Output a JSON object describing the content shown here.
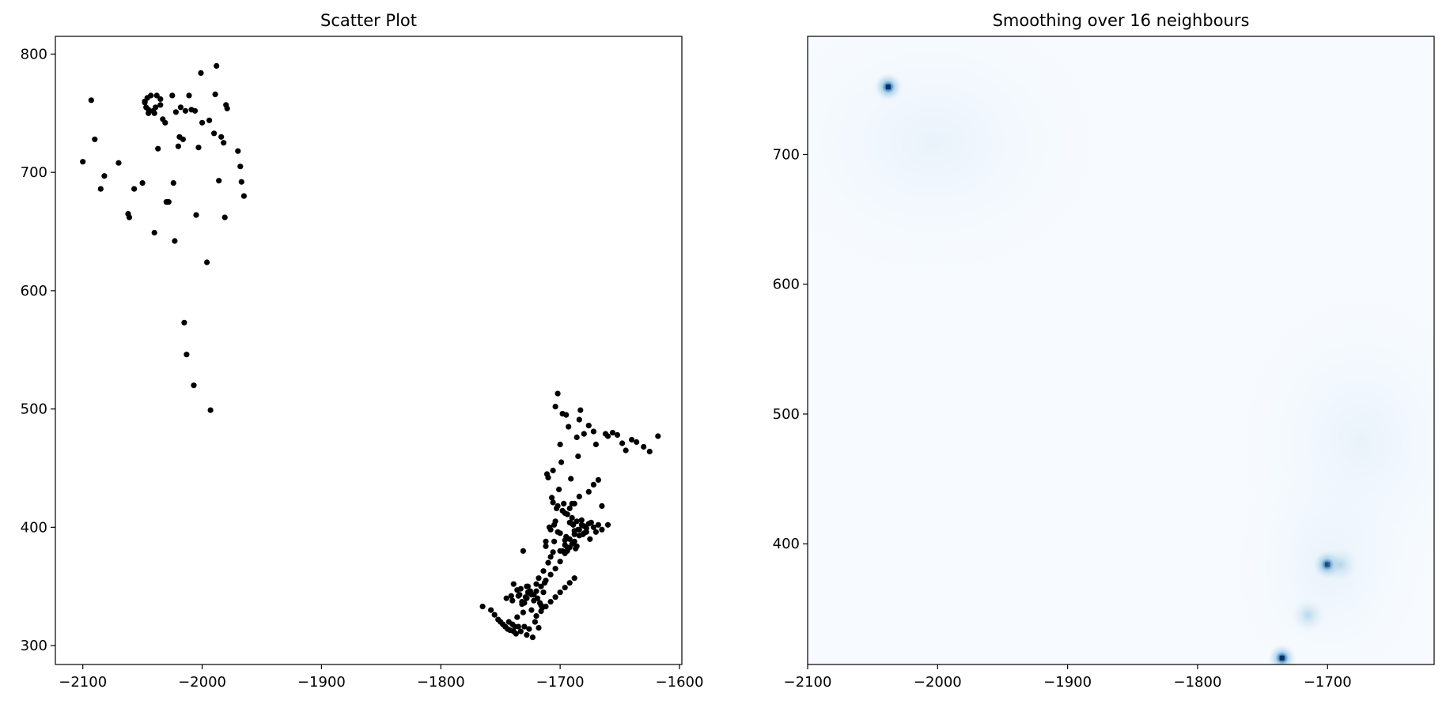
{
  "chart_data": [
    {
      "type": "scatter",
      "title": "Scatter Plot",
      "xlabel": "",
      "ylabel": "",
      "xlim": [
        -2123,
        -1598
      ],
      "ylim": [
        284,
        815
      ],
      "xticks": [
        -2100,
        -2000,
        -1900,
        -1800,
        -1700,
        -1600
      ],
      "xtick_labels": [
        "−2100",
        "−2000",
        "−1900",
        "−1800",
        "−1700",
        "−1600"
      ],
      "yticks": [
        300,
        400,
        500,
        600,
        700,
        800
      ],
      "ytick_labels": [
        "300",
        "400",
        "500",
        "600",
        "700",
        "800"
      ],
      "grid": false,
      "marker_color": "#000000",
      "x": [
        -2100,
        -2093,
        -2090,
        -2085,
        -2082,
        -2070,
        -2062,
        -2061,
        -2057,
        -2050,
        -2048,
        -2047,
        -2046,
        -2045,
        -2043,
        -2041,
        -2040,
        -2039,
        -2038,
        -2037,
        -2035,
        -2033,
        -2031,
        -2030,
        -2028,
        -2025,
        -2024,
        -2022,
        -2020,
        -2019,
        -2018,
        -2016,
        -2015,
        -2013,
        -2011,
        -2009,
        -2007,
        -2005,
        -2003,
        -2001,
        -2000,
        -1996,
        -1993,
        -1990,
        -1989,
        -1988,
        -1986,
        -1984,
        -1982,
        -1981,
        -1980,
        -1979,
        -1970,
        -1968,
        -1967,
        -1965,
        -2040,
        -2045,
        -2035,
        -2023,
        -2029,
        -2048,
        -2014,
        -2006,
        -1994,
        -1765,
        -1758,
        -1755,
        -1752,
        -1750,
        -1748,
        -1746,
        -1745,
        -1744,
        -1743,
        -1742,
        -1741,
        -1740,
        -1739,
        -1738,
        -1737,
        -1736,
        -1735,
        -1734,
        -1733,
        -1732,
        -1731,
        -1730,
        -1729,
        -1728,
        -1727,
        -1726,
        -1725,
        -1724,
        -1723,
        -1722,
        -1721,
        -1720,
        -1719,
        -1718,
        -1717,
        -1716,
        -1715,
        -1714,
        -1713,
        -1712,
        -1711,
        -1710,
        -1709,
        -1708,
        -1707,
        -1706,
        -1705,
        -1704,
        -1703,
        -1702,
        -1701,
        -1700,
        -1699,
        -1698,
        -1697,
        -1696,
        -1695,
        -1694,
        -1693,
        -1692,
        -1691,
        -1690,
        -1689,
        -1688,
        -1687,
        -1686,
        -1685,
        -1684,
        -1683,
        -1682,
        -1681,
        -1680,
        -1678,
        -1676,
        -1674,
        -1672,
        -1670,
        -1668,
        -1665,
        -1662,
        -1660,
        -1656,
        -1652,
        -1648,
        -1645,
        -1640,
        -1636,
        -1630,
        -1625,
        -1618,
        -1740,
        -1735,
        -1730,
        -1725,
        -1733,
        -1728,
        -1736,
        -1739,
        -1731,
        -1727,
        -1722,
        -1718,
        -1714,
        -1710,
        -1706,
        -1702,
        -1698,
        -1694,
        -1690,
        -1686,
        -1705,
        -1700,
        -1695,
        -1690,
        -1685,
        -1680,
        -1675,
        -1670,
        -1665,
        -1660,
        -1712,
        -1708,
        -1704,
        -1696,
        -1692,
        -1688,
        -1684,
        -1676,
        -1672,
        -1668,
        -1700,
        -1696,
        -1692,
        -1688,
        -1684,
        -1732,
        -1728,
        -1724,
        -1720,
        -1716,
        -1712,
        -1708,
        -1704,
        -1700,
        -1696,
        -1692,
        -1688,
        -1684,
        -1680,
        -1676,
        -1672,
        -1706,
        -1702,
        -1698,
        -1694,
        -1690,
        -1686,
        -1682,
        -1678,
        -1720,
        -1716,
        -1712,
        -1708,
        -1704,
        -1700,
        -1696,
        -1692,
        -1688
      ],
      "y": [
        709,
        761,
        728,
        686,
        697,
        708,
        665,
        662,
        686,
        691,
        760,
        755,
        763,
        753,
        765,
        752,
        750,
        755,
        765,
        720,
        757,
        745,
        742,
        675,
        675,
        765,
        691,
        751,
        722,
        730,
        755,
        728,
        573,
        546,
        765,
        753,
        520,
        664,
        721,
        784,
        742,
        624,
        499,
        733,
        766,
        790,
        693,
        730,
        725,
        662,
        757,
        754,
        718,
        705,
        692,
        680,
        649,
        750,
        762,
        642,
        675,
        759,
        752,
        752,
        744,
        333,
        330,
        326,
        322,
        320,
        318,
        316,
        340,
        314,
        320,
        313,
        342,
        318,
        312,
        316,
        310,
        324,
        316,
        343,
        312,
        335,
        380,
        316,
        341,
        309,
        350,
        314,
        346,
        330,
        307,
        343,
        320,
        352,
        340,
        315,
        336,
        334,
        332,
        345,
        353,
        388,
        445,
        442,
        400,
        398,
        425,
        448,
        388,
        502,
        416,
        513,
        432,
        470,
        455,
        496,
        420,
        389,
        495,
        383,
        485,
        404,
        441,
        420,
        402,
        397,
        382,
        476,
        460,
        491,
        499,
        406,
        394,
        479,
        396,
        486,
        404,
        481,
        470,
        402,
        418,
        479,
        477,
        480,
        478,
        471,
        465,
        474,
        472,
        468,
        464,
        477,
        338,
        342,
        336,
        344,
        348,
        350,
        347,
        352,
        328,
        345,
        338,
        357,
        363,
        370,
        379,
        396,
        380,
        380,
        386,
        384,
        402,
        395,
        392,
        403,
        398,
        395,
        390,
        396,
        398,
        402,
        384,
        375,
        405,
        412,
        416,
        420,
        426,
        430,
        436,
        440,
        380,
        385,
        390,
        394,
        398,
        337,
        340,
        343,
        346,
        350,
        355,
        360,
        365,
        371,
        378,
        383,
        388,
        393,
        401,
        403,
        400,
        421,
        418,
        414,
        411,
        408,
        405,
        402,
        399,
        325,
        329,
        333,
        337,
        341,
        345,
        349,
        353,
        357
      ]
    },
    {
      "type": "heatmap",
      "title": "Smoothing over 16 neighbours",
      "xlabel": "",
      "ylabel": "",
      "xlim": [
        -2100,
        -1618
      ],
      "ylim": [
        307,
        791
      ],
      "xticks": [
        -2100,
        -2000,
        -1900,
        -1800,
        -1700
      ],
      "xtick_labels": [
        "−2100",
        "−2000",
        "−1900",
        "−1800",
        "−1700"
      ],
      "yticks": [
        400,
        500,
        600,
        700
      ],
      "ytick_labels": [
        "400",
        "500",
        "600",
        "700"
      ],
      "colormap": "Blues",
      "background_color": "#f7fbff",
      "hotspots": [
        {
          "x": -2038,
          "y": 752,
          "intensity": 1.0
        },
        {
          "x": -1700,
          "y": 384,
          "intensity": 0.95
        },
        {
          "x": -1735,
          "y": 312,
          "intensity": 0.95
        },
        {
          "x": -1715,
          "y": 345,
          "intensity": 0.4
        },
        {
          "x": -1690,
          "y": 384,
          "intensity": 0.3
        }
      ]
    }
  ]
}
